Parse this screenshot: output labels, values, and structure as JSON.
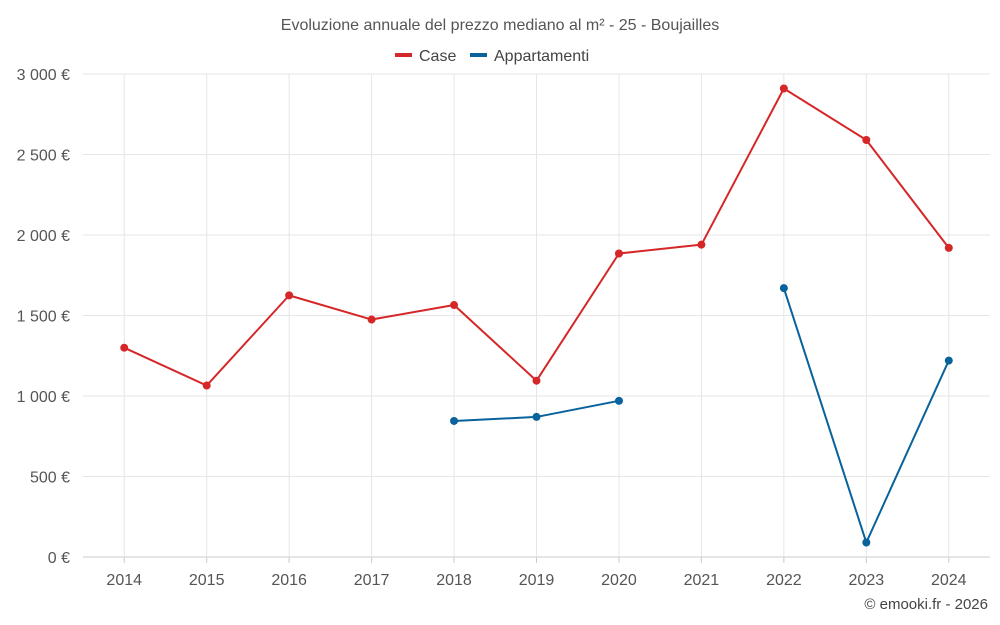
{
  "chart_data": {
    "type": "line",
    "title": "Evoluzione annuale del prezzo mediano al m² - 25 - Boujailles",
    "categories": [
      "2014",
      "2015",
      "2016",
      "2017",
      "2018",
      "2019",
      "2020",
      "2021",
      "2022",
      "2023",
      "2024"
    ],
    "ylim": [
      0,
      3000
    ],
    "yticks": [
      0,
      500,
      1000,
      1500,
      2000,
      2500,
      3000
    ],
    "ytick_labels": [
      "0 €",
      "500 €",
      "1 000 €",
      "1 500 €",
      "2 000 €",
      "2 500 €",
      "3 000 €"
    ],
    "xlabel": "",
    "ylabel": "",
    "grid": true,
    "legend_position": "top-center",
    "series": [
      {
        "name": "Case",
        "color": "#d62728",
        "values": [
          1300,
          1065,
          1625,
          1475,
          1565,
          1095,
          1885,
          1940,
          2910,
          2590,
          1920
        ]
      },
      {
        "name": "Appartamenti",
        "color": "#08629c",
        "values": [
          null,
          null,
          null,
          null,
          845,
          870,
          970,
          null,
          1670,
          90,
          1220
        ]
      }
    ]
  },
  "credit": "© emooki.fr - 2026"
}
